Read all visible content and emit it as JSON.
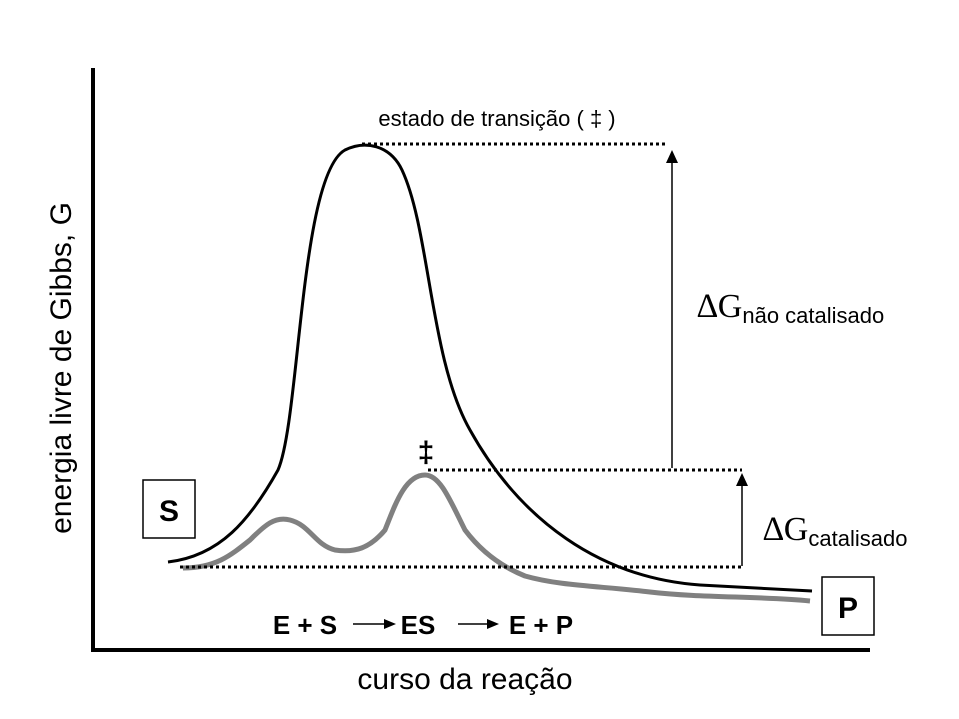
{
  "diagram": {
    "y_axis_label": "energia livre de Gibbs, G",
    "x_axis_label": "curso da reação",
    "transition_state_label": "estado de transição ( ‡ )",
    "catalyzed_ts_symbol": "‡",
    "substrate_label": "S",
    "product_label": "P",
    "delta_symbol": "∆G",
    "delta_uncatalyzed_subscript": "não catalisado",
    "delta_catalyzed_subscript": "catalisado",
    "reaction_scheme": {
      "es_left": "E + S",
      "es_middle": "ES",
      "es_right": "E + P"
    }
  },
  "colors": {
    "uncatalyzed_curve": "#000000",
    "catalyzed_curve": "#808080",
    "axes": "#000000"
  }
}
